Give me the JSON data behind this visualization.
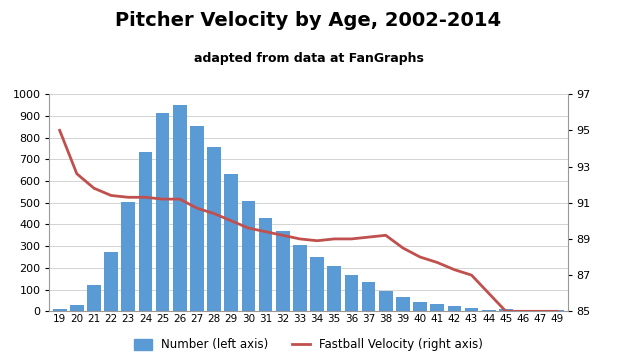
{
  "ages": [
    19,
    20,
    21,
    22,
    23,
    24,
    25,
    26,
    27,
    28,
    29,
    30,
    31,
    32,
    33,
    34,
    35,
    36,
    37,
    38,
    39,
    40,
    41,
    42,
    43,
    44,
    45,
    46,
    47,
    49
  ],
  "counts": [
    10,
    30,
    120,
    275,
    505,
    735,
    915,
    950,
    855,
    755,
    630,
    510,
    430,
    370,
    305,
    250,
    210,
    165,
    135,
    95,
    68,
    45,
    35,
    25,
    15,
    5,
    10,
    8,
    7,
    5
  ],
  "velocities": [
    95.0,
    92.6,
    91.8,
    91.4,
    91.3,
    91.3,
    91.2,
    91.2,
    90.7,
    90.4,
    90.0,
    89.6,
    89.4,
    89.2,
    89.0,
    88.9,
    89.0,
    89.0,
    89.1,
    89.2,
    88.5,
    88.0,
    87.7,
    87.3,
    87.0,
    86.0,
    85.0,
    85.0,
    85.0,
    85.0
  ],
  "title": "Pitcher Velocity by Age, 2002-2014",
  "subtitle": "adapted from data at FanGraphs",
  "bar_color": "#5B9BD5",
  "line_color": "#C0504D",
  "ylim_left": [
    0,
    1000
  ],
  "ylim_right": [
    85.0,
    97.0
  ],
  "yticks_left": [
    0,
    100,
    200,
    300,
    400,
    500,
    600,
    700,
    800,
    900,
    1000
  ],
  "yticks_right": [
    85.0,
    87.0,
    89.0,
    91.0,
    93.0,
    95.0,
    97.0
  ],
  "legend_bar_label": "Number (left axis)",
  "legend_line_label": "Fastball Velocity (right axis)",
  "background_color": "#ffffff",
  "title_fontsize": 14,
  "subtitle_fontsize": 9
}
